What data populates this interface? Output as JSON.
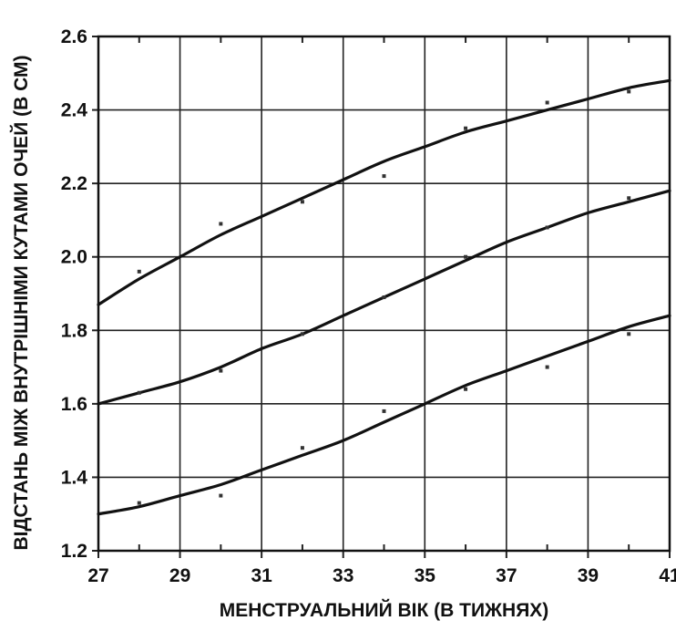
{
  "chart_data": {
    "type": "line",
    "title": "",
    "xlabel": "МЕНСТРУАЛЬНИЙ ВІК (В ТИЖНЯХ)",
    "ylabel": "ВІДСТАНЬ МІЖ ВНУТРІШНІМИ КУТАМИ ОЧЕЙ (В СМ)",
    "xlim": [
      27,
      41
    ],
    "ylim": [
      1.2,
      2.6
    ],
    "xticks": [
      "27",
      "29",
      "31",
      "33",
      "35",
      "37",
      "39",
      "41"
    ],
    "yticks": [
      "1.2",
      "1.4",
      "1.6",
      "1.8",
      "2.0",
      "2.2",
      "2.4",
      "2.6"
    ],
    "grid": true,
    "legend": "none",
    "colors": {
      "line": "#111111",
      "grid": "#222222",
      "point": "#333333"
    },
    "x": [
      27,
      28,
      29,
      30,
      31,
      32,
      33,
      34,
      35,
      36,
      37,
      38,
      39,
      40,
      41
    ],
    "series": [
      {
        "values": [
          1.87,
          1.94,
          2.0,
          2.06,
          2.11,
          2.16,
          2.21,
          2.26,
          2.3,
          2.34,
          2.37,
          2.4,
          2.43,
          2.46,
          2.48
        ]
      },
      {
        "values": [
          1.6,
          1.63,
          1.66,
          1.7,
          1.75,
          1.79,
          1.84,
          1.89,
          1.94,
          1.99,
          2.04,
          2.08,
          2.12,
          2.15,
          2.18
        ]
      },
      {
        "values": [
          1.3,
          1.32,
          1.35,
          1.38,
          1.42,
          1.46,
          1.5,
          1.55,
          1.6,
          1.65,
          1.69,
          1.73,
          1.77,
          1.81,
          1.84
        ]
      }
    ],
    "points": [
      {
        "x": 28,
        "y": 1.96
      },
      {
        "x": 30,
        "y": 2.09
      },
      {
        "x": 32,
        "y": 2.15
      },
      {
        "x": 34,
        "y": 2.22
      },
      {
        "x": 36,
        "y": 2.35
      },
      {
        "x": 38,
        "y": 2.42
      },
      {
        "x": 40,
        "y": 2.45
      },
      {
        "x": 28,
        "y": 1.63
      },
      {
        "x": 30,
        "y": 1.69
      },
      {
        "x": 32,
        "y": 1.79
      },
      {
        "x": 34,
        "y": 1.89
      },
      {
        "x": 36,
        "y": 2.0
      },
      {
        "x": 38,
        "y": 2.08
      },
      {
        "x": 40,
        "y": 2.16
      },
      {
        "x": 28,
        "y": 1.33
      },
      {
        "x": 30,
        "y": 1.35
      },
      {
        "x": 32,
        "y": 1.48
      },
      {
        "x": 34,
        "y": 1.58
      },
      {
        "x": 36,
        "y": 1.64
      },
      {
        "x": 38,
        "y": 1.7
      },
      {
        "x": 40,
        "y": 1.79
      }
    ]
  }
}
